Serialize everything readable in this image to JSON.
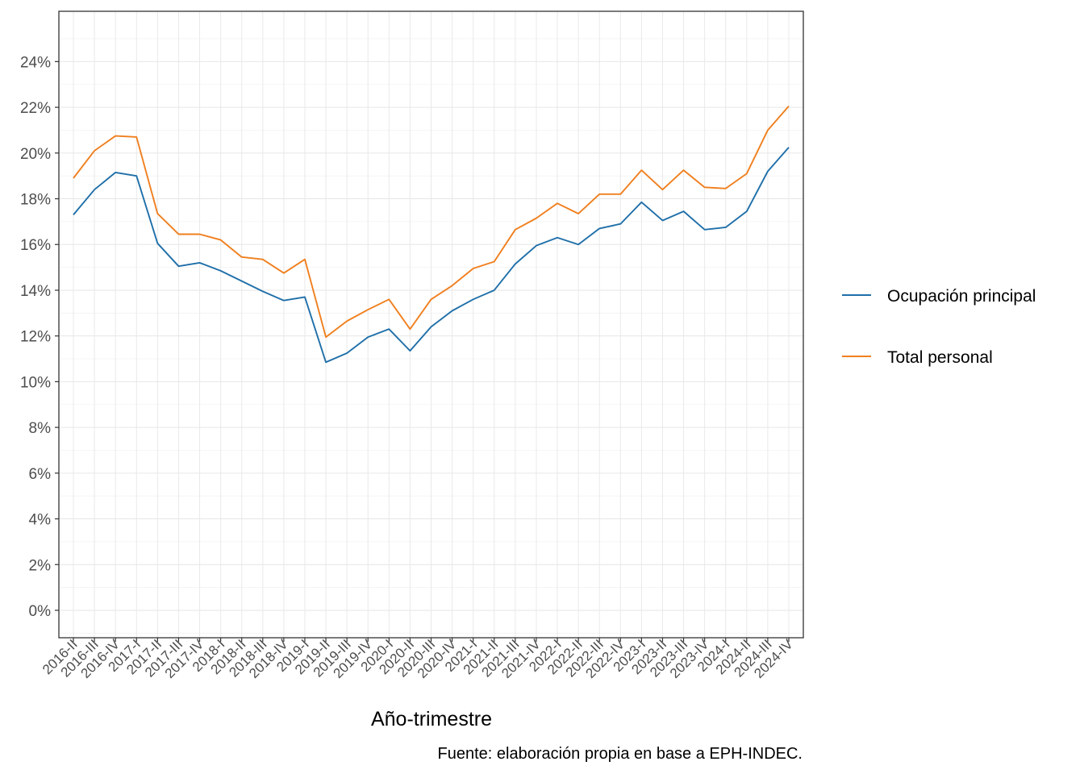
{
  "chart_data": {
    "type": "line",
    "title": "",
    "xlabel": "Año-trimestre",
    "ylabel": "",
    "caption": "Fuente: elaboración propia en base a EPH-INDEC.",
    "x": [
      "2016-II",
      "2016-III",
      "2016-IV",
      "2017-I",
      "2017-II",
      "2017-III",
      "2017-IV",
      "2018-I",
      "2018-II",
      "2018-III",
      "2018-IV",
      "2019-I",
      "2019-II",
      "2019-III",
      "2019-IV",
      "2020-I",
      "2020-II",
      "2020-III",
      "2020-IV",
      "2021-I",
      "2021-II",
      "2021-III",
      "2021-IV",
      "2022-I",
      "2022-II",
      "2022-III",
      "2022-IV",
      "2023-I",
      "2023-II",
      "2023-III",
      "2023-IV",
      "2024-I",
      "2024-II",
      "2024-III",
      "2024-IV"
    ],
    "ylim": [
      -1.2,
      26.2
    ],
    "yticks": [
      0,
      2,
      4,
      6,
      8,
      10,
      12,
      14,
      16,
      18,
      20,
      22,
      24
    ],
    "ytick_labels": [
      "0%",
      "2%",
      "4%",
      "6%",
      "8%",
      "10%",
      "12%",
      "14%",
      "16%",
      "18%",
      "20%",
      "22%",
      "24%"
    ],
    "grid": true,
    "legend_position": "right",
    "series": [
      {
        "name": "Ocupación principal",
        "color": "#1f6fa9",
        "values": [
          17.3,
          18.4,
          19.15,
          19.0,
          16.05,
          15.05,
          15.2,
          14.85,
          14.4,
          13.95,
          13.55,
          13.7,
          10.85,
          11.25,
          11.95,
          12.3,
          11.35,
          12.4,
          13.1,
          13.6,
          14.0,
          15.15,
          15.95,
          16.3,
          16.0,
          16.7,
          16.9,
          17.85,
          17.05,
          17.45,
          16.65,
          16.75,
          17.45,
          19.2,
          20.25
        ]
      },
      {
        "name": "Total personal",
        "color": "#f07f1e",
        "values": [
          18.9,
          20.1,
          20.75,
          20.7,
          17.35,
          16.45,
          16.45,
          16.2,
          15.45,
          15.35,
          14.75,
          15.35,
          11.95,
          12.65,
          13.15,
          13.6,
          12.3,
          13.6,
          14.2,
          14.95,
          15.25,
          16.65,
          17.15,
          17.8,
          17.35,
          18.2,
          18.2,
          19.25,
          18.4,
          19.25,
          18.5,
          18.45,
          19.1,
          21.0,
          22.05
        ]
      }
    ]
  }
}
